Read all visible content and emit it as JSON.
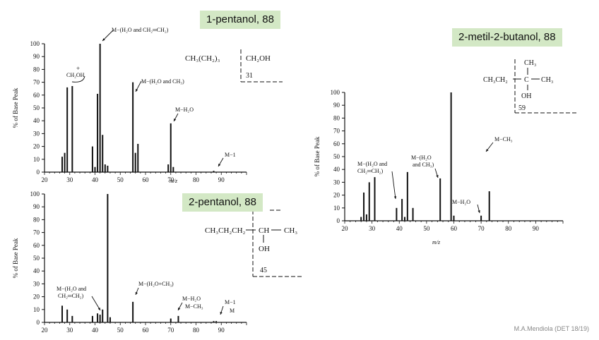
{
  "labels": {
    "pentanol1": "1-pentanol, 88",
    "pentanol2": "2-pentanol, 88",
    "metilbutanol": "2-metil-2-butanol, 88"
  },
  "credit": "M.A.Mendiola (DET 18/19)",
  "structures": {
    "s1": {
      "formula": "CH₃(CH₂)₃",
      "group": "CH₂OH",
      "mass": "31"
    },
    "s2": {
      "formula": "CH₃CH₂CH₂",
      "center": "CH",
      "right": "CH₃",
      "below": "OH",
      "mass": "45"
    },
    "s3": {
      "formula": "CH₃CH₂",
      "center": "C",
      "right": "CH₃",
      "top": "CH₃",
      "below": "OH",
      "mass": "59"
    }
  },
  "chart_data": [
    {
      "type": "bar",
      "ylabel": "% of Base Peak",
      "xlabel": "m/z",
      "xlim": [
        20,
        100
      ],
      "ylim": [
        0,
        100
      ],
      "xticks": [
        20,
        30,
        40,
        50,
        60,
        70,
        80,
        90
      ],
      "yticks": [
        0,
        10,
        20,
        30,
        40,
        50,
        60,
        70,
        80,
        90,
        100
      ],
      "peaks": [
        {
          "x": 27,
          "y": 12
        },
        {
          "x": 28,
          "y": 15
        },
        {
          "x": 29,
          "y": 66
        },
        {
          "x": 31,
          "y": 67
        },
        {
          "x": 39,
          "y": 20
        },
        {
          "x": 40,
          "y": 4
        },
        {
          "x": 41,
          "y": 61
        },
        {
          "x": 42,
          "y": 100
        },
        {
          "x": 43,
          "y": 29
        },
        {
          "x": 44,
          "y": 6
        },
        {
          "x": 45,
          "y": 5
        },
        {
          "x": 55,
          "y": 70
        },
        {
          "x": 56,
          "y": 15
        },
        {
          "x": 57,
          "y": 22
        },
        {
          "x": 69,
          "y": 6
        },
        {
          "x": 70,
          "y": 38
        },
        {
          "x": 71,
          "y": 4
        },
        {
          "x": 87,
          "y": 1
        }
      ],
      "annotations": [
        {
          "text": "M−(H₂O and CH₂═CH₂)"
        },
        {
          "text": "CH₂OH"
        },
        {
          "text": "+"
        },
        {
          "text": "M−(H₂O and CH₃)"
        },
        {
          "text": "M−H₂O"
        },
        {
          "text": "M−1"
        }
      ]
    },
    {
      "type": "bar",
      "ylabel": "% of Base Peak",
      "xlabel": "",
      "xlim": [
        20,
        100
      ],
      "ylim": [
        0,
        100
      ],
      "xticks": [
        20,
        30,
        40,
        50,
        60,
        70,
        80,
        90
      ],
      "yticks": [
        0,
        10,
        20,
        30,
        40,
        50,
        60,
        70,
        80,
        90,
        100
      ],
      "peaks": [
        {
          "x": 27,
          "y": 13
        },
        {
          "x": 29,
          "y": 10
        },
        {
          "x": 31,
          "y": 5
        },
        {
          "x": 39,
          "y": 5
        },
        {
          "x": 41,
          "y": 7
        },
        {
          "x": 42,
          "y": 6
        },
        {
          "x": 43,
          "y": 10
        },
        {
          "x": 45,
          "y": 100
        },
        {
          "x": 46,
          "y": 4
        },
        {
          "x": 55,
          "y": 16
        },
        {
          "x": 70,
          "y": 3
        },
        {
          "x": 73,
          "y": 5
        },
        {
          "x": 87,
          "y": 1
        },
        {
          "x": 88,
          "y": 1
        }
      ],
      "annotations": [
        {
          "text": "M−(H₂O and"
        },
        {
          "text": "CH₂═CH₂)"
        },
        {
          "text": "M−(H₂O+CH₃)"
        },
        {
          "text": "M−H₂O"
        },
        {
          "text": "M−CH₃"
        },
        {
          "text": "M−1"
        },
        {
          "text": "M"
        }
      ]
    },
    {
      "type": "bar",
      "ylabel": "% of Base Peak",
      "xlabel": "m/z",
      "xlim": [
        20,
        100
      ],
      "ylim": [
        0,
        100
      ],
      "xticks": [
        20,
        30,
        40,
        50,
        60,
        70,
        80,
        90
      ],
      "yticks": [
        0,
        10,
        20,
        30,
        40,
        50,
        60,
        70,
        80,
        90,
        100
      ],
      "peaks": [
        {
          "x": 26,
          "y": 3
        },
        {
          "x": 27,
          "y": 22
        },
        {
          "x": 28,
          "y": 5
        },
        {
          "x": 29,
          "y": 30
        },
        {
          "x": 31,
          "y": 34
        },
        {
          "x": 39,
          "y": 10
        },
        {
          "x": 41,
          "y": 17
        },
        {
          "x": 42,
          "y": 3
        },
        {
          "x": 43,
          "y": 38
        },
        {
          "x": 45,
          "y": 10
        },
        {
          "x": 55,
          "y": 33
        },
        {
          "x": 59,
          "y": 100
        },
        {
          "x": 60,
          "y": 4
        },
        {
          "x": 70,
          "y": 4
        },
        {
          "x": 73,
          "y": 23
        }
      ],
      "annotations": [
        {
          "text": "M−(H₂O and"
        },
        {
          "text": "CH₂═CH₂)"
        },
        {
          "text": "M−(H₂O"
        },
        {
          "text": "and CH₃)"
        },
        {
          "text": "M−H₂O"
        },
        {
          "text": "M−CH₃"
        }
      ]
    }
  ]
}
